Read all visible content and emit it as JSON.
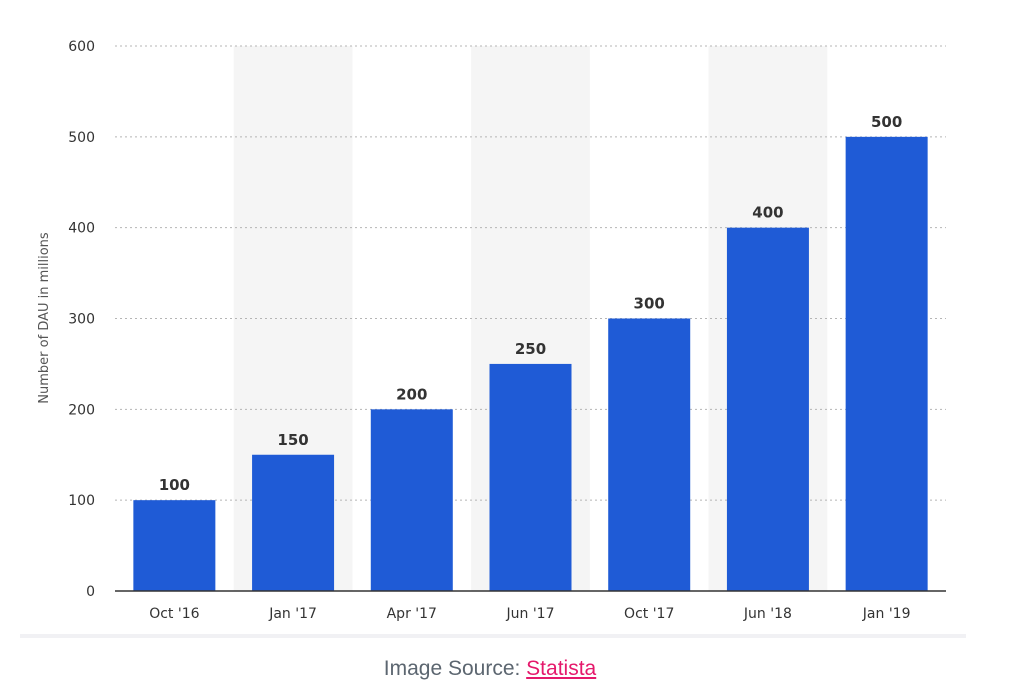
{
  "chart_data": {
    "type": "bar",
    "categories": [
      "Oct '16",
      "Jan '17",
      "Apr '17",
      "Jun '17",
      "Oct '17",
      "Jun '18",
      "Jan '19"
    ],
    "values": [
      100,
      150,
      200,
      250,
      300,
      400,
      500
    ],
    "data_labels": [
      "100",
      "150",
      "200",
      "250",
      "300",
      "400",
      "500"
    ],
    "ylabel": "Number of DAU in millions",
    "ylim": [
      0,
      600
    ],
    "yticks": [
      0,
      100,
      200,
      300,
      400,
      500,
      600
    ],
    "grid": "horizontal dotted",
    "bar_color": "#1f5bd6",
    "band_color": "#f5f5f5"
  },
  "footer": {
    "source_prefix": "Image Source: ",
    "source_link": "Statista",
    "link_color": "#e5186b"
  }
}
